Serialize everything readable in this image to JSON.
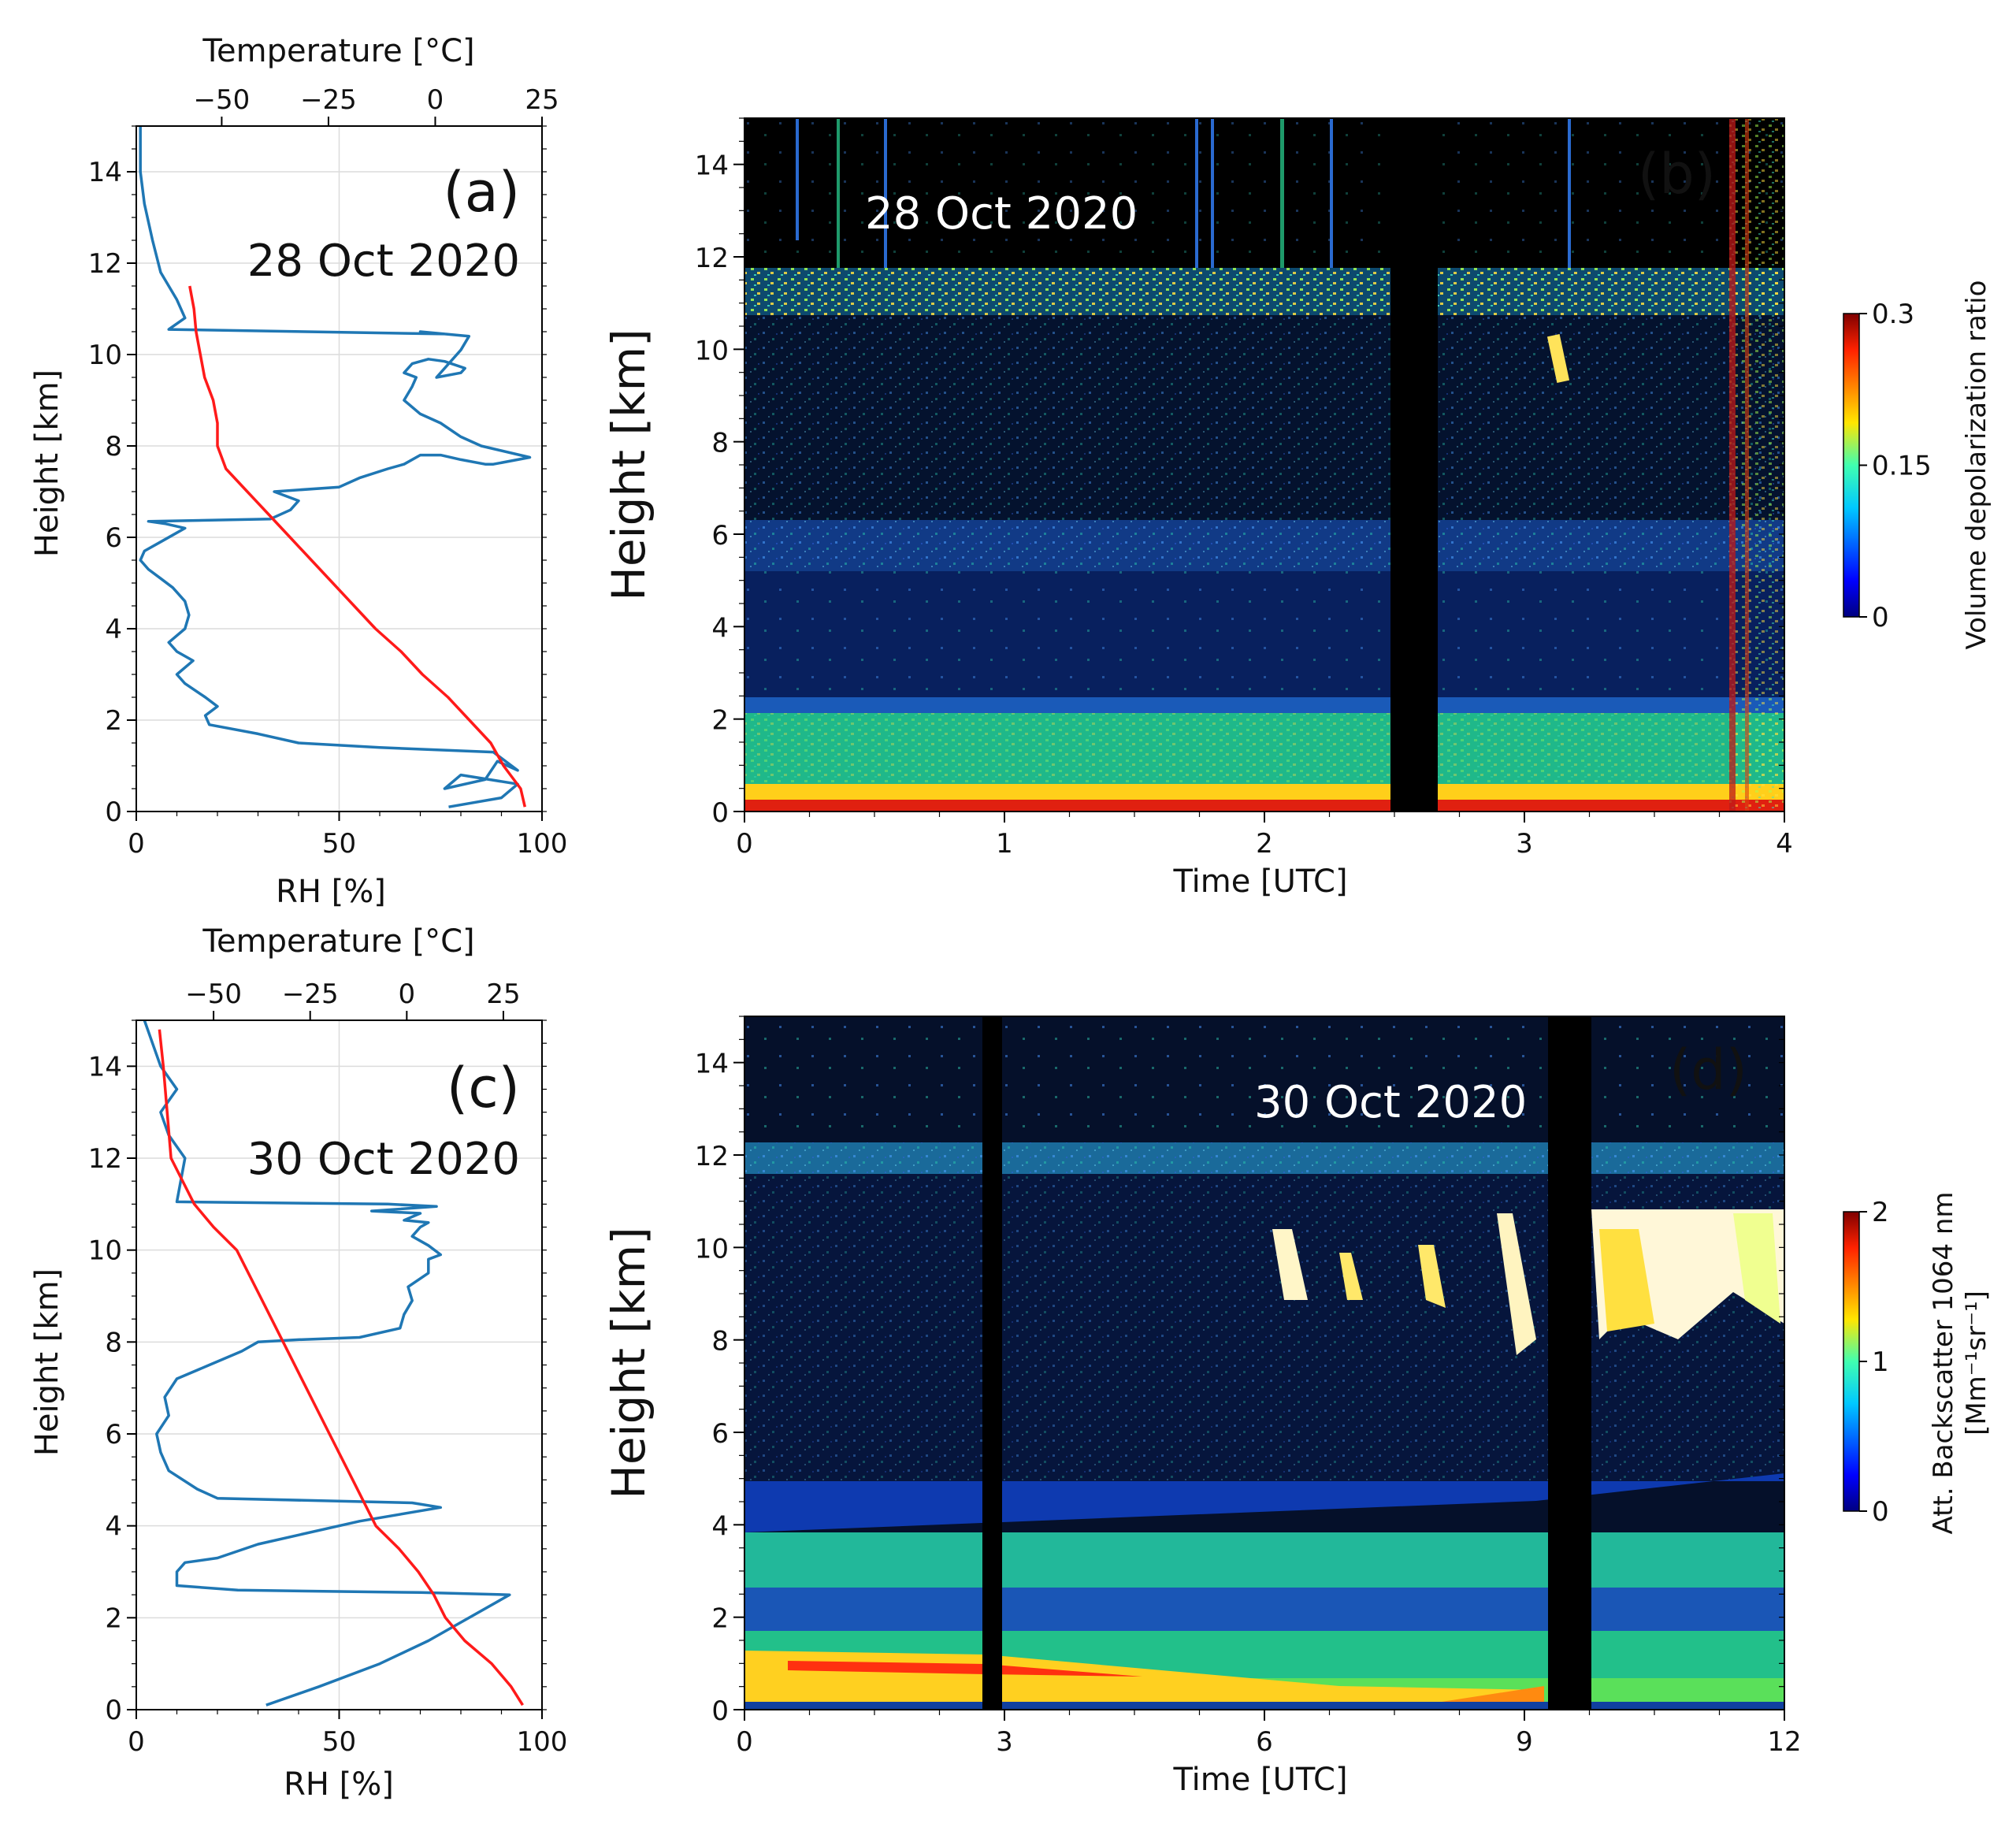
{
  "colors": {
    "rh": "#1f77b4",
    "temperature": "#ff1a1a"
  },
  "chart_data": [
    {
      "panel": "(a)",
      "type": "line",
      "annotation": "28 Oct 2020",
      "xlabel": "RH [%]",
      "x2label": "Temperature [°C]",
      "ylabel": "Height [km]",
      "xlim": [
        0,
        100
      ],
      "x2lim": [
        -70,
        25
      ],
      "ylim": [
        0,
        15
      ],
      "xticks": [
        "0",
        "50",
        "100"
      ],
      "x2ticks": [
        "−50",
        "−25",
        "0",
        "25"
      ],
      "yticks": [
        "0",
        "2",
        "4",
        "6",
        "8",
        "10",
        "12",
        "14"
      ],
      "grid": true,
      "series": [
        {
          "axis": "x",
          "color": "#1f77b4",
          "x": [
            77,
            90,
            94,
            80,
            76,
            86,
            89,
            94,
            88,
            60,
            40,
            30,
            18,
            17,
            20,
            17,
            12,
            10,
            14,
            10,
            8,
            12,
            13,
            12,
            9,
            6,
            3,
            1,
            2,
            6,
            10,
            12,
            7,
            3,
            33,
            38,
            40,
            34,
            50,
            55,
            62,
            66,
            70,
            75,
            80,
            86,
            88,
            97,
            85,
            80,
            75,
            70,
            66,
            68,
            69,
            66,
            68,
            72,
            76,
            81,
            80,
            74,
            80,
            82,
            70,
            76,
            8,
            12,
            10,
            6,
            4,
            2,
            1,
            1
          ],
          "y": [
            0.1,
            0.3,
            0.6,
            0.8,
            0.5,
            0.7,
            1.1,
            0.9,
            1.3,
            1.4,
            1.5,
            1.7,
            1.9,
            2.1,
            2.3,
            2.5,
            2.8,
            3.0,
            3.3,
            3.5,
            3.7,
            4.0,
            4.3,
            4.6,
            4.9,
            5.1,
            5.3,
            5.5,
            5.7,
            5.9,
            6.1,
            6.2,
            6.3,
            6.35,
            6.4,
            6.6,
            6.8,
            7.0,
            7.1,
            7.3,
            7.5,
            7.6,
            7.8,
            7.8,
            7.7,
            7.6,
            7.6,
            7.75,
            8.0,
            8.2,
            8.5,
            8.7,
            9.0,
            9.3,
            9.5,
            9.6,
            9.8,
            9.9,
            9.85,
            9.7,
            9.6,
            9.5,
            10.1,
            10.4,
            10.5,
            10.45,
            10.55,
            10.8,
            11.2,
            11.8,
            12.5,
            13.3,
            14.0,
            15.0
          ]
        },
        {
          "axis": "x2",
          "color": "#ff1a1a",
          "x": [
            21,
            20,
            16,
            13,
            8,
            3,
            -3,
            -8,
            -14,
            -19,
            -24,
            -29,
            -34,
            -39,
            -44,
            -49,
            -51,
            -51,
            -52,
            -54,
            -55,
            -56,
            -56.5,
            -57.5
          ],
          "y": [
            0.1,
            0.5,
            1.0,
            1.5,
            2.0,
            2.5,
            3.0,
            3.5,
            4.0,
            4.5,
            5.0,
            5.5,
            6.0,
            6.5,
            7.0,
            7.5,
            8.0,
            8.5,
            9.0,
            9.5,
            10.0,
            10.5,
            11.0,
            11.5
          ]
        }
      ]
    },
    {
      "panel": "(b)",
      "type": "heatmap",
      "annotation": "28 Oct 2020",
      "xlabel": "Time [UTC]",
      "ylabel": "Height [km]",
      "xlim": [
        0,
        4
      ],
      "ylim": [
        0,
        15
      ],
      "xticks": [
        "0",
        "1",
        "2",
        "3",
        "4"
      ],
      "yticks": [
        "0",
        "2",
        "4",
        "6",
        "8",
        "10",
        "12",
        "14"
      ],
      "colorbar": {
        "label": "Volume depolarization ratio",
        "min": 0,
        "max": 0.3,
        "ticks": [
          "0",
          "0.15",
          "0.3"
        ]
      },
      "data_gap": [
        2.5,
        2.68
      ]
    },
    {
      "panel": "(c)",
      "type": "line",
      "annotation": "30 Oct 2020",
      "xlabel": "RH [%]",
      "x2label": "Temperature [°C]",
      "ylabel": "Height [km]",
      "xlim": [
        0,
        100
      ],
      "x2lim": [
        -70,
        35
      ],
      "ylim": [
        0,
        15
      ],
      "xticks": [
        "0",
        "50",
        "100"
      ],
      "x2ticks": [
        "−50",
        "−25",
        "0",
        "25"
      ],
      "yticks": [
        "0",
        "2",
        "4",
        "6",
        "8",
        "10",
        "12",
        "14"
      ],
      "grid": true,
      "series": [
        {
          "axis": "x",
          "color": "#1f77b4",
          "x": [
            32,
            45,
            60,
            72,
            78,
            92,
            70,
            25,
            10,
            10,
            12,
            20,
            30,
            40,
            55,
            75,
            68,
            20,
            15,
            8,
            6,
            5,
            8,
            7,
            10,
            18,
            26,
            30,
            40,
            55,
            65,
            66,
            68,
            67,
            72,
            72,
            75,
            72,
            68,
            70,
            72,
            66,
            70,
            58,
            74,
            62,
            10,
            12,
            8,
            6,
            10,
            6,
            4,
            2
          ],
          "y": [
            0.1,
            0.5,
            1.0,
            1.5,
            1.8,
            2.5,
            2.55,
            2.6,
            2.7,
            3.0,
            3.2,
            3.3,
            3.6,
            3.8,
            4.1,
            4.4,
            4.5,
            4.6,
            4.8,
            5.2,
            5.6,
            6.0,
            6.4,
            6.8,
            7.2,
            7.5,
            7.8,
            8.0,
            8.05,
            8.1,
            8.3,
            8.6,
            8.9,
            9.2,
            9.5,
            9.8,
            9.9,
            10.1,
            10.3,
            10.5,
            10.6,
            10.65,
            10.8,
            10.85,
            10.95,
            11.0,
            11.05,
            12.0,
            12.5,
            13.0,
            13.5,
            14.0,
            14.5,
            15.0
          ]
        },
        {
          "axis": "x2",
          "color": "#ff1a1a",
          "x": [
            30,
            27,
            22,
            15,
            10,
            7,
            3,
            -2,
            -8,
            -14,
            -20,
            -26,
            -32,
            -38,
            -44,
            -50,
            -55,
            -61,
            -62,
            -63,
            -64
          ],
          "y": [
            0.1,
            0.5,
            1.0,
            1.5,
            2.0,
            2.5,
            3.0,
            3.5,
            4.0,
            5.0,
            6.0,
            7.0,
            8.0,
            9.0,
            10.0,
            10.5,
            11.0,
            12.0,
            13.0,
            14.0,
            14.8
          ]
        }
      ]
    },
    {
      "panel": "(d)",
      "type": "heatmap",
      "annotation": "30 Oct 2020",
      "xlabel": "Time [UTC]",
      "ylabel": "Height [km]",
      "xlim": [
        0,
        12
      ],
      "ylim": [
        0,
        15
      ],
      "xticks": [
        "0",
        "3",
        "6",
        "9",
        "12"
      ],
      "yticks": [
        "0",
        "2",
        "4",
        "6",
        "8",
        "10",
        "12",
        "14"
      ],
      "colorbar": {
        "label": "Att. Backscatter 1064 nm",
        "units": "[Mm⁻¹sr⁻¹]",
        "min": 0,
        "max": 2,
        "ticks": [
          "0",
          "1",
          "2"
        ]
      },
      "data_gaps": [
        [
          2.75,
          2.95
        ],
        [
          9.35,
          9.85
        ]
      ]
    }
  ]
}
